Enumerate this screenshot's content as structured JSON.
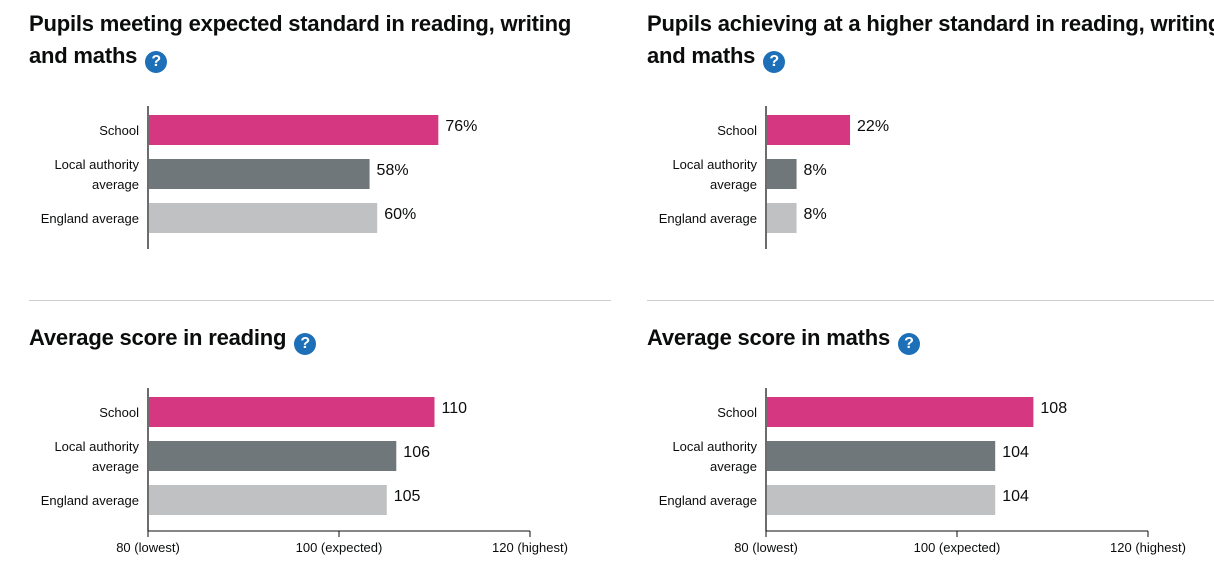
{
  "colors": {
    "school": "#d53880",
    "local_authority": "#6f777b",
    "england": "#bfc1c3",
    "axis": "#0b0c0c",
    "help_icon": "#1d70b8"
  },
  "help_icon_glyph": "?",
  "chart_data": [
    {
      "type": "bar",
      "title": "Pupils meeting expected standard in reading, writing and maths",
      "categories": [
        "School",
        "Local authority average",
        "England average"
      ],
      "values": [
        76,
        58,
        60
      ],
      "value_labels": [
        "76%",
        "58%",
        "60%"
      ],
      "xlim": [
        0,
        100
      ]
    },
    {
      "type": "bar",
      "title": "Pupils achieving at a higher standard in reading, writing and maths",
      "categories": [
        "School",
        "Local authority average",
        "England average"
      ],
      "values": [
        22,
        8,
        8
      ],
      "value_labels": [
        "22%",
        "8%",
        "8%"
      ],
      "xlim": [
        0,
        100
      ]
    },
    {
      "type": "bar",
      "title": "Average score in reading",
      "categories": [
        "School",
        "Local authority average",
        "England average"
      ],
      "values": [
        110,
        106,
        105
      ],
      "value_labels": [
        "110",
        "106",
        "105"
      ],
      "xlim": [
        80,
        120
      ],
      "ticks": [
        80,
        100,
        120
      ],
      "tick_labels": [
        "80 (lowest)",
        "100 (expected)",
        "120 (highest)"
      ]
    },
    {
      "type": "bar",
      "title": "Average score in maths",
      "categories": [
        "School",
        "Local authority average",
        "England average"
      ],
      "values": [
        108,
        104,
        104
      ],
      "value_labels": [
        "108",
        "104",
        "104"
      ],
      "xlim": [
        80,
        120
      ],
      "ticks": [
        80,
        100,
        120
      ],
      "tick_labels": [
        "80 (lowest)",
        "100 (expected)",
        "120 (highest)"
      ]
    }
  ]
}
